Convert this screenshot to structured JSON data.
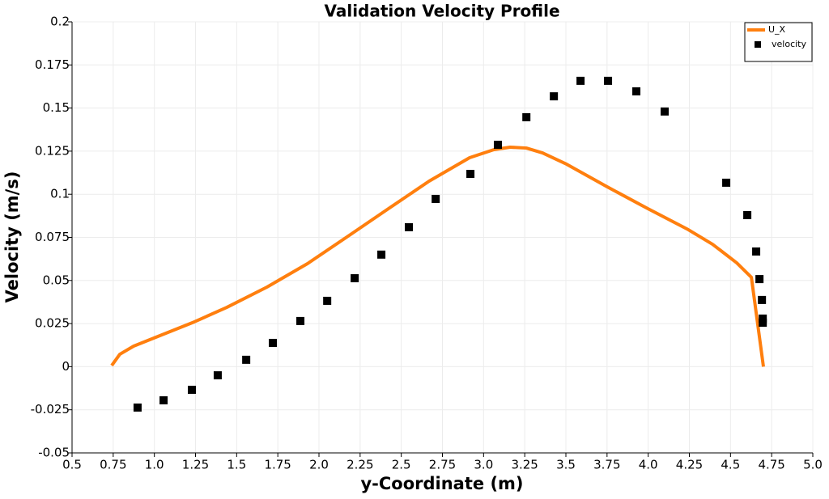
{
  "chart_data": {
    "type": "line",
    "title": "Validation Velocity Profile",
    "x_label": "y-Coordinate (m)",
    "y_label": "Velocity (m/s)",
    "xlim": [
      0.5,
      5.0
    ],
    "ylim": [
      -0.05,
      0.2
    ],
    "xticks": [
      0.5,
      0.75,
      {
        "value": 1,
        "label": "1.0"
      },
      1.25,
      1.5,
      1.75,
      {
        "value": 2,
        "label": "2.0"
      },
      2.25,
      2.5,
      2.75,
      {
        "value": 3,
        "label": "3.0"
      },
      3.25,
      3.5,
      3.75,
      {
        "value": 4,
        "label": "4.0"
      },
      4.25,
      4.5,
      4.75,
      {
        "value": 5,
        "label": "5.0"
      }
    ],
    "yticks": [
      -0.05,
      -0.025,
      0,
      0.025,
      0.05,
      0.075,
      0.1,
      0.125,
      0.15,
      0.175,
      0.2
    ],
    "grid": true,
    "legend": "top-right",
    "series": [
      {
        "name": "U_X",
        "type": "line",
        "color": "#ff7f0e",
        "x": [
          0.741,
          0.79,
          0.874,
          1.046,
          1.243,
          1.44,
          1.685,
          1.931,
          2.177,
          2.423,
          2.669,
          2.915,
          3.063,
          3.161,
          3.26,
          3.358,
          3.505,
          3.751,
          3.997,
          4.243,
          4.391,
          4.538,
          4.627,
          4.7
        ],
        "values": [
          0.0007,
          0.0072,
          0.0119,
          0.0185,
          0.026,
          0.0344,
          0.0462,
          0.0598,
          0.0757,
          0.0917,
          0.1076,
          0.1212,
          0.1259,
          0.1273,
          0.1268,
          0.124,
          0.1174,
          0.1043,
          0.0917,
          0.0795,
          0.071,
          0.0602,
          0.0518,
          0.0
        ]
      },
      {
        "name": "velocity",
        "type": "scatter",
        "color": "#000000",
        "x": [
          0.898,
          1.056,
          1.228,
          1.385,
          1.558,
          1.72,
          1.887,
          2.05,
          2.217,
          2.379,
          2.546,
          2.709,
          2.92,
          3.087,
          3.26,
          3.427,
          3.589,
          3.756,
          3.928,
          4.1,
          4.474,
          4.602,
          4.656,
          4.676,
          4.691,
          4.696,
          4.696
        ],
        "values": [
          -0.0237,
          -0.0195,
          -0.0134,
          -0.005,
          0.004,
          0.0138,
          0.0265,
          0.0382,
          0.0513,
          0.065,
          0.0809,
          0.0973,
          0.1118,
          0.1287,
          0.1447,
          0.1568,
          0.1658,
          0.1658,
          0.1597,
          0.148,
          0.1067,
          0.0879,
          0.0668,
          0.0508,
          0.0387,
          0.0279,
          0.0255
        ]
      }
    ]
  }
}
